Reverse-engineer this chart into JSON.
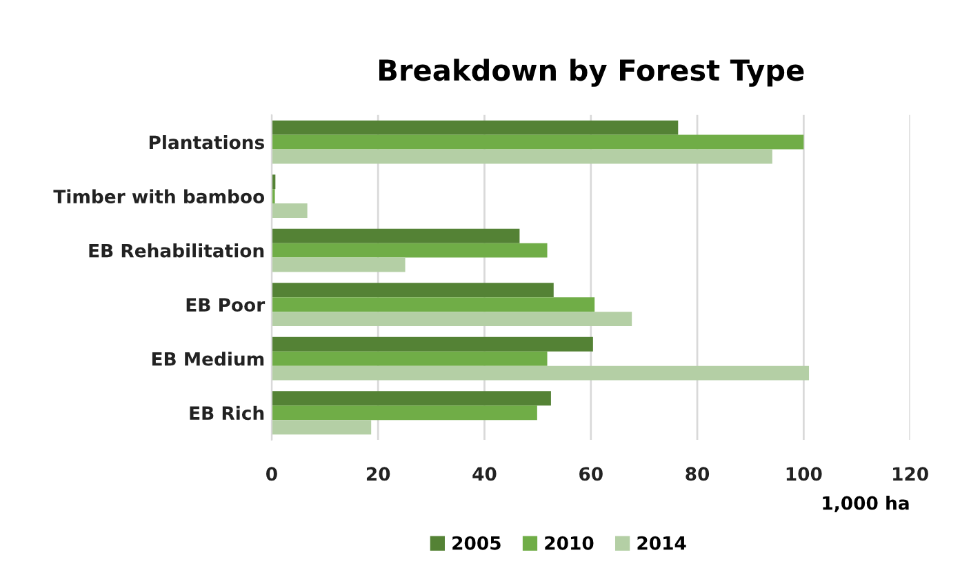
{
  "chart_data": {
    "type": "bar",
    "orientation": "horizontal",
    "title": "Breakdown by Forest Type",
    "xlabel": "1,000 ha",
    "categories": [
      "Plantations",
      "Timber with bamboo",
      "EB Rehabilitation",
      "EB Poor",
      "EB Medium",
      "EB Rich"
    ],
    "series": [
      {
        "name": "2005",
        "color": "#548235",
        "values": [
          76.4,
          0.7,
          46.6,
          53.0,
          60.4,
          52.5
        ]
      },
      {
        "name": "2010",
        "color": "#70ad47",
        "values": [
          100,
          0.6,
          51.8,
          60.7,
          51.8,
          49.9
        ]
      },
      {
        "name": "2014",
        "color": "#b4cfa5",
        "values": [
          94.1,
          6.7,
          25.1,
          67.7,
          101,
          18.7
        ]
      }
    ],
    "xlim": [
      0,
      120
    ],
    "xticks": [
      0,
      20,
      40,
      60,
      80,
      100,
      120
    ],
    "grid": "x",
    "legend": "bottom"
  }
}
